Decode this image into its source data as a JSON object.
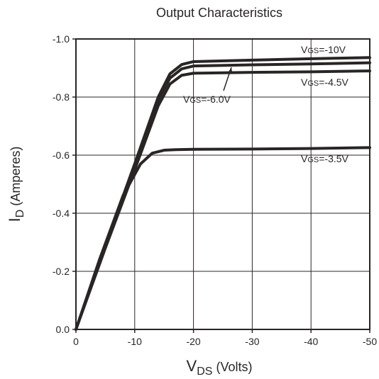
{
  "chart_data": {
    "type": "line",
    "title": "Output Characteristics",
    "xlabel": {
      "main": "V",
      "sub": "DS",
      "rest": " (Volts)"
    },
    "ylabel": {
      "main": "I",
      "sub": "D",
      "rest": " (Amperes)"
    },
    "xlim": [
      0,
      -50
    ],
    "ylim": [
      0,
      -1.0
    ],
    "xticks": [
      0,
      -10,
      -20,
      -30,
      -40,
      -50
    ],
    "xtick_labels": [
      "0",
      "-10",
      "-20",
      "-30",
      "-40",
      "-50"
    ],
    "yticks": [
      0,
      -0.2,
      -0.4,
      -0.6,
      -0.8,
      -1.0
    ],
    "ytick_labels": [
      "0.0",
      "-0.2",
      "-0.4",
      "-0.6",
      "-0.8",
      "-1.0"
    ],
    "grid": true,
    "series": [
      {
        "name": "VGS=-10V",
        "label": {
          "prefix": "V",
          "sub": "GS",
          "rest": "=-10V"
        },
        "points": [
          [
            0,
            0
          ],
          [
            -5,
            -0.29
          ],
          [
            -10,
            -0.57
          ],
          [
            -14,
            -0.8
          ],
          [
            -16,
            -0.88
          ],
          [
            -18,
            -0.912
          ],
          [
            -20,
            -0.922
          ],
          [
            -30,
            -0.927
          ],
          [
            -40,
            -0.932
          ],
          [
            -50,
            -0.936
          ]
        ]
      },
      {
        "name": "VGS=-6.0V",
        "label": {
          "prefix": "V",
          "sub": "GS",
          "rest": "=-6.0V"
        },
        "points": [
          [
            0,
            0
          ],
          [
            -5,
            -0.285
          ],
          [
            -10,
            -0.56
          ],
          [
            -14,
            -0.79
          ],
          [
            -16,
            -0.865
          ],
          [
            -18,
            -0.897
          ],
          [
            -20,
            -0.907
          ],
          [
            -30,
            -0.911
          ],
          [
            -40,
            -0.914
          ],
          [
            -50,
            -0.918
          ]
        ]
      },
      {
        "name": "VGS=-4.5V",
        "label": {
          "prefix": "V",
          "sub": "GS",
          "rest": "=-4.5V"
        },
        "points": [
          [
            0,
            0
          ],
          [
            -5,
            -0.28
          ],
          [
            -10,
            -0.55
          ],
          [
            -14,
            -0.77
          ],
          [
            -16,
            -0.845
          ],
          [
            -18,
            -0.875
          ],
          [
            -20,
            -0.882
          ],
          [
            -30,
            -0.885
          ],
          [
            -40,
            -0.887
          ],
          [
            -50,
            -0.89
          ]
        ]
      },
      {
        "name": "VGS=-3.5V",
        "label": {
          "prefix": "V",
          "sub": "GS",
          "rest": "=-3.5V"
        },
        "points": [
          [
            0,
            0
          ],
          [
            -4,
            -0.24
          ],
          [
            -8,
            -0.46
          ],
          [
            -11,
            -0.57
          ],
          [
            -13,
            -0.607
          ],
          [
            -15,
            -0.617
          ],
          [
            -17,
            -0.619
          ],
          [
            -20,
            -0.62
          ],
          [
            -30,
            -0.621
          ],
          [
            -40,
            -0.623
          ],
          [
            -50,
            -0.626
          ]
        ]
      }
    ],
    "colors": {
      "curve": "#2a2525",
      "grid": "#2a2525",
      "text": "#2a2525",
      "background": "#ffffff"
    }
  }
}
